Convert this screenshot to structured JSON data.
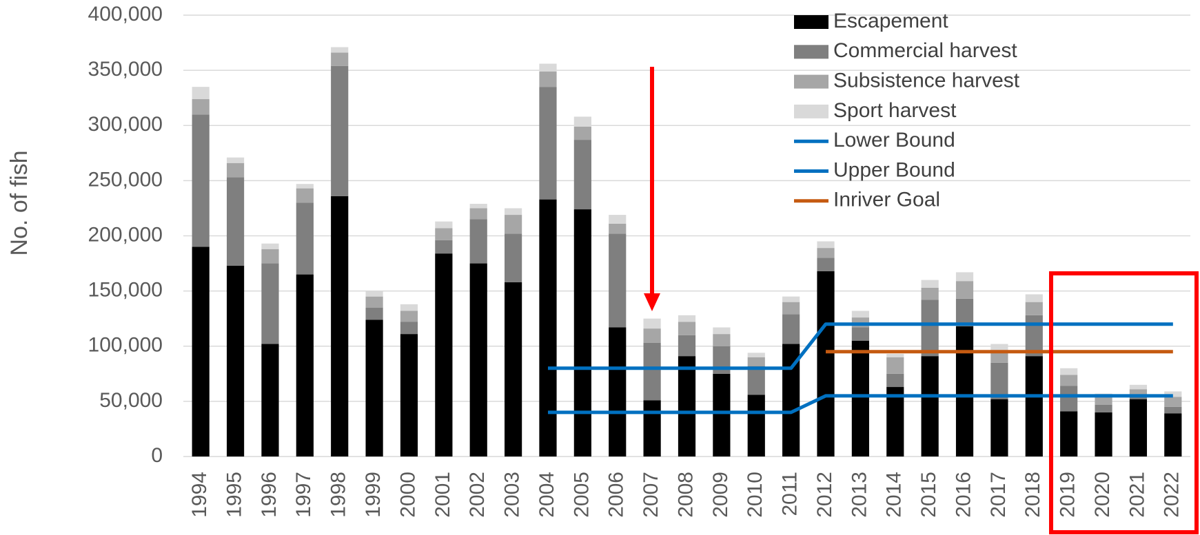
{
  "chart_data": {
    "type": "bar",
    "y_label": "No. of fish",
    "categories": [
      "1994",
      "1995",
      "1996",
      "1997",
      "1998",
      "1999",
      "2000",
      "2001",
      "2002",
      "2003",
      "2004",
      "2005",
      "2006",
      "2007",
      "2008",
      "2009",
      "2010",
      "2011",
      "2012",
      "2013",
      "2014",
      "2015",
      "2016",
      "2017",
      "2018",
      "2019",
      "2020",
      "2021",
      "2022"
    ],
    "series": [
      {
        "name": "Escapement",
        "type": "bar",
        "color": "#000000",
        "values": [
          190000,
          173000,
          102000,
          165000,
          236000,
          124000,
          111000,
          184000,
          175000,
          158000,
          233000,
          224000,
          117000,
          51000,
          91000,
          75000,
          56000,
          102000,
          168000,
          105000,
          63000,
          91000,
          118000,
          52000,
          91000,
          41000,
          40000,
          52000,
          39000
        ]
      },
      {
        "name": "Commercial harvest",
        "type": "bar",
        "color": "#7f7f7f",
        "values": [
          120000,
          80000,
          73000,
          65000,
          118000,
          11000,
          11000,
          12000,
          40000,
          44000,
          102000,
          63000,
          85000,
          52000,
          19000,
          25000,
          26000,
          27000,
          12000,
          12000,
          12000,
          51000,
          25000,
          33000,
          37000,
          23000,
          7000,
          4000,
          6000
        ]
      },
      {
        "name": "Subsistence harvest",
        "type": "bar",
        "color": "#a6a6a6",
        "values": [
          14000,
          13000,
          13000,
          13000,
          12000,
          10000,
          10000,
          11000,
          10000,
          17000,
          14000,
          12000,
          9000,
          13000,
          12000,
          11000,
          8000,
          11000,
          9000,
          9000,
          15000,
          11000,
          16000,
          11000,
          12000,
          10000,
          7000,
          5000,
          9000
        ]
      },
      {
        "name": "Sport harvest",
        "type": "bar",
        "color": "#d9d9d9",
        "values": [
          11000,
          5000,
          5000,
          4000,
          5000,
          5000,
          6000,
          6000,
          4000,
          6000,
          7000,
          9000,
          8000,
          9000,
          6000,
          6000,
          4000,
          5000,
          6000,
          6000,
          3000,
          7000,
          8000,
          6000,
          7000,
          6000,
          3000,
          4000,
          5000
        ]
      },
      {
        "name": "Lower Bound",
        "type": "line",
        "color": "#0070c0",
        "values": [
          null,
          null,
          null,
          null,
          null,
          null,
          null,
          null,
          null,
          null,
          40000,
          40000,
          40000,
          40000,
          40000,
          40000,
          40000,
          40000,
          55000,
          55000,
          55000,
          55000,
          55000,
          55000,
          55000,
          55000,
          55000,
          55000,
          55000
        ]
      },
      {
        "name": "Upper Bound",
        "type": "line",
        "color": "#0070c0",
        "values": [
          null,
          null,
          null,
          null,
          null,
          null,
          null,
          null,
          null,
          null,
          80000,
          80000,
          80000,
          80000,
          80000,
          80000,
          80000,
          80000,
          120000,
          120000,
          120000,
          120000,
          120000,
          120000,
          120000,
          120000,
          120000,
          120000,
          120000
        ]
      },
      {
        "name": "Inriver Goal",
        "type": "line",
        "color": "#c55a11",
        "values": [
          null,
          null,
          null,
          null,
          null,
          null,
          null,
          null,
          null,
          null,
          null,
          null,
          null,
          null,
          null,
          null,
          null,
          null,
          95000,
          95000,
          95000,
          95000,
          95000,
          95000,
          95000,
          95000,
          95000,
          95000,
          95000
        ]
      }
    ],
    "ylim": [
      0,
      400000
    ],
    "yticks": [
      0,
      {
        "value": 50000,
        "label": "50,000"
      },
      {
        "value": 100000,
        "label": "100,000"
      },
      {
        "value": 150000,
        "label": "150,000"
      },
      {
        "value": 200000,
        "label": "200,000"
      },
      {
        "value": 250000,
        "label": "250,000"
      },
      {
        "value": 300000,
        "label": "300,000"
      },
      {
        "value": 350000,
        "label": "350,000"
      },
      {
        "value": 400000,
        "label": "400,000"
      }
    ],
    "grid": true,
    "legend": "top-right"
  }
}
